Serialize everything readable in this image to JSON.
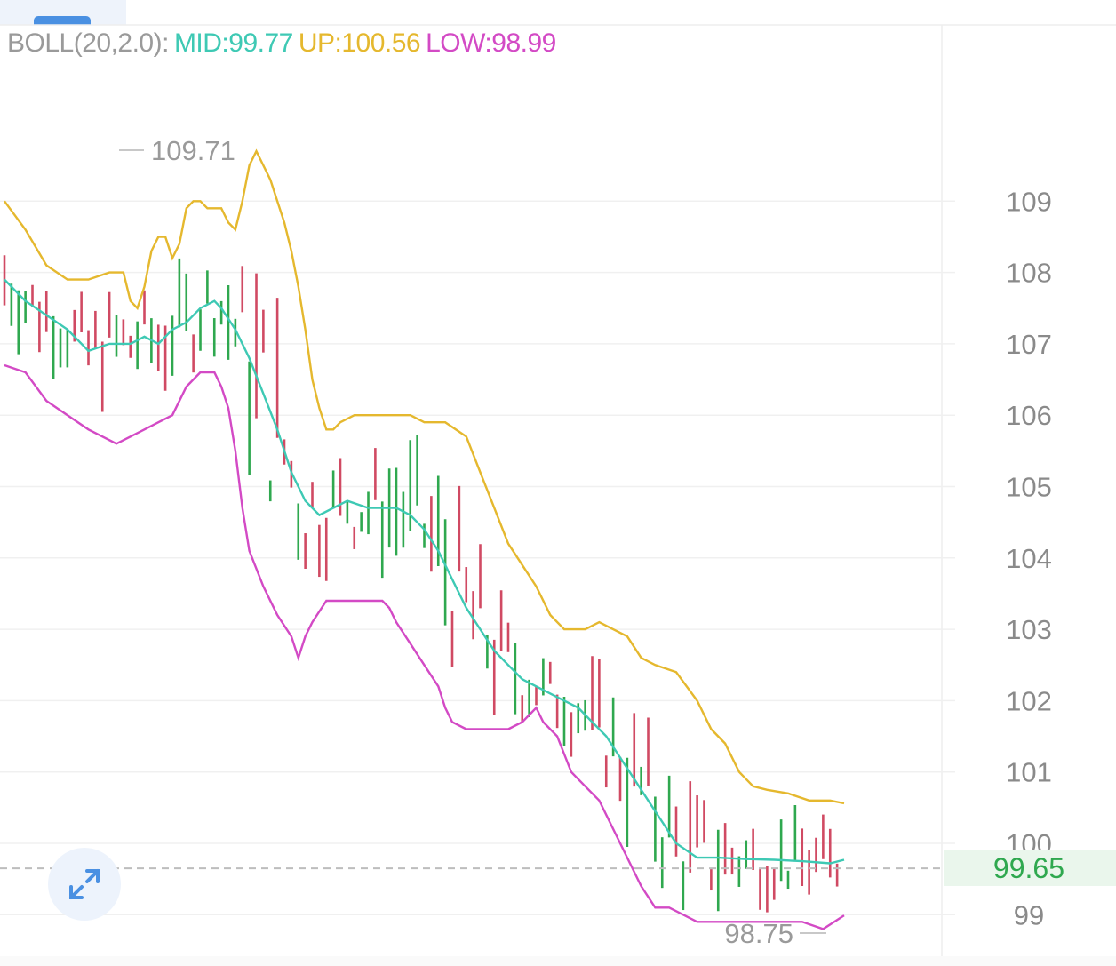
{
  "indicator": {
    "name": "BOLL(20,2.0):",
    "mid": "MID:99.77",
    "up": "UP:100.56",
    "low": "LOW:98.99"
  },
  "colors": {
    "mid": "#3ec9b4",
    "up": "#e5b82e",
    "low": "#d34ac5",
    "rise": "#2fa84f",
    "fall": "#d04a63",
    "grid": "#f0f0f0",
    "axis_text": "#8a8a8a"
  },
  "current_price": "99.65",
  "chart_data": {
    "type": "candlestick-bollinger",
    "y_ticks": [
      109,
      108,
      107,
      106,
      105,
      104,
      103,
      102,
      101,
      100,
      99
    ],
    "ylim": [
      98.5,
      111
    ],
    "max_label": "109.71",
    "min_label": "98.75",
    "current_price": 99.65,
    "series": {
      "upper": [
        [
          0,
          109.0
        ],
        [
          3,
          108.6
        ],
        [
          6,
          108.1
        ],
        [
          9,
          107.9
        ],
        [
          12,
          107.9
        ],
        [
          15,
          108.0
        ],
        [
          17,
          108.0
        ],
        [
          18,
          107.6
        ],
        [
          19,
          107.5
        ],
        [
          20,
          107.8
        ],
        [
          21,
          108.3
        ],
        [
          22,
          108.5
        ],
        [
          23,
          108.5
        ],
        [
          24,
          108.2
        ],
        [
          25,
          108.4
        ],
        [
          26,
          108.9
        ],
        [
          27,
          109.0
        ],
        [
          28,
          109.0
        ],
        [
          29,
          108.9
        ],
        [
          30,
          108.9
        ],
        [
          31,
          108.9
        ],
        [
          32,
          108.7
        ],
        [
          33,
          108.6
        ],
        [
          34,
          109.0
        ],
        [
          35,
          109.5
        ],
        [
          36,
          109.7
        ],
        [
          37,
          109.5
        ],
        [
          38,
          109.3
        ],
        [
          39,
          109.0
        ],
        [
          40,
          108.7
        ],
        [
          41,
          108.3
        ],
        [
          42,
          107.8
        ],
        [
          43,
          107.2
        ],
        [
          44,
          106.5
        ],
        [
          45,
          106.1
        ],
        [
          46,
          105.8
        ],
        [
          47,
          105.8
        ],
        [
          48,
          105.9
        ],
        [
          50,
          106.0
        ],
        [
          55,
          106.0
        ],
        [
          58,
          106.0
        ],
        [
          60,
          105.9
        ],
        [
          63,
          105.9
        ],
        [
          66,
          105.7
        ],
        [
          68,
          105.2
        ],
        [
          70,
          104.7
        ],
        [
          72,
          104.2
        ],
        [
          74,
          103.9
        ],
        [
          76,
          103.6
        ],
        [
          78,
          103.2
        ],
        [
          80,
          103.0
        ],
        [
          83,
          103.0
        ],
        [
          85,
          103.1
        ],
        [
          87,
          103.0
        ],
        [
          89,
          102.9
        ],
        [
          91,
          102.6
        ],
        [
          93,
          102.5
        ],
        [
          96,
          102.4
        ],
        [
          99,
          102.0
        ],
        [
          101,
          101.6
        ],
        [
          103,
          101.4
        ],
        [
          105,
          101.0
        ],
        [
          107,
          100.8
        ],
        [
          109,
          100.75
        ],
        [
          112,
          100.7
        ],
        [
          115,
          100.6
        ],
        [
          118,
          100.6
        ],
        [
          120,
          100.56
        ]
      ],
      "mid": [
        [
          0,
          107.9
        ],
        [
          3,
          107.6
        ],
        [
          6,
          107.4
        ],
        [
          9,
          107.2
        ],
        [
          12,
          106.9
        ],
        [
          15,
          107.0
        ],
        [
          18,
          107.0
        ],
        [
          20,
          107.1
        ],
        [
          22,
          107.0
        ],
        [
          24,
          107.2
        ],
        [
          26,
          107.3
        ],
        [
          28,
          107.5
        ],
        [
          30,
          107.6
        ],
        [
          31,
          107.5
        ],
        [
          33,
          107.2
        ],
        [
          35,
          106.8
        ],
        [
          37,
          106.3
        ],
        [
          39,
          105.8
        ],
        [
          41,
          105.2
        ],
        [
          43,
          104.8
        ],
        [
          45,
          104.6
        ],
        [
          47,
          104.7
        ],
        [
          49,
          104.8
        ],
        [
          52,
          104.7
        ],
        [
          54,
          104.7
        ],
        [
          56,
          104.7
        ],
        [
          58,
          104.6
        ],
        [
          60,
          104.4
        ],
        [
          62,
          104.1
        ],
        [
          64,
          103.7
        ],
        [
          66,
          103.3
        ],
        [
          68,
          103.0
        ],
        [
          70,
          102.7
        ],
        [
          72,
          102.5
        ],
        [
          74,
          102.3
        ],
        [
          76,
          102.2
        ],
        [
          78,
          102.1
        ],
        [
          80,
          102.0
        ],
        [
          82,
          101.9
        ],
        [
          84,
          101.7
        ],
        [
          86,
          101.5
        ],
        [
          88,
          101.2
        ],
        [
          90,
          100.9
        ],
        [
          92,
          100.6
        ],
        [
          94,
          100.3
        ],
        [
          96,
          100.0
        ],
        [
          99,
          99.8
        ],
        [
          102,
          99.8
        ],
        [
          106,
          99.78
        ],
        [
          110,
          99.77
        ],
        [
          114,
          99.75
        ],
        [
          118,
          99.72
        ],
        [
          120,
          99.77
        ]
      ],
      "lower": [
        [
          0,
          106.7
        ],
        [
          3,
          106.6
        ],
        [
          6,
          106.2
        ],
        [
          9,
          106.0
        ],
        [
          12,
          105.8
        ],
        [
          14,
          105.7
        ],
        [
          16,
          105.6
        ],
        [
          18,
          105.7
        ],
        [
          20,
          105.8
        ],
        [
          22,
          105.9
        ],
        [
          24,
          106.0
        ],
        [
          26,
          106.4
        ],
        [
          28,
          106.6
        ],
        [
          30,
          106.6
        ],
        [
          31,
          106.4
        ],
        [
          32,
          106.1
        ],
        [
          33,
          105.5
        ],
        [
          34,
          104.7
        ],
        [
          35,
          104.1
        ],
        [
          37,
          103.6
        ],
        [
          39,
          103.2
        ],
        [
          41,
          102.9
        ],
        [
          42,
          102.6
        ],
        [
          43,
          102.9
        ],
        [
          44,
          103.1
        ],
        [
          46,
          103.4
        ],
        [
          48,
          103.4
        ],
        [
          50,
          103.4
        ],
        [
          52,
          103.4
        ],
        [
          54,
          103.4
        ],
        [
          55,
          103.3
        ],
        [
          56,
          103.1
        ],
        [
          58,
          102.8
        ],
        [
          60,
          102.5
        ],
        [
          62,
          102.2
        ],
        [
          63,
          101.9
        ],
        [
          64,
          101.7
        ],
        [
          66,
          101.6
        ],
        [
          68,
          101.6
        ],
        [
          70,
          101.6
        ],
        [
          72,
          101.6
        ],
        [
          74,
          101.7
        ],
        [
          76,
          101.9
        ],
        [
          77,
          101.7
        ],
        [
          79,
          101.5
        ],
        [
          81,
          101.0
        ],
        [
          83,
          100.8
        ],
        [
          85,
          100.6
        ],
        [
          87,
          100.2
        ],
        [
          89,
          99.8
        ],
        [
          91,
          99.4
        ],
        [
          93,
          99.1
        ],
        [
          95,
          99.1
        ],
        [
          97,
          99.0
        ],
        [
          99,
          98.9
        ],
        [
          102,
          98.9
        ],
        [
          106,
          98.9
        ],
        [
          110,
          98.9
        ],
        [
          114,
          98.9
        ],
        [
          117,
          98.8
        ],
        [
          120,
          98.99
        ]
      ]
    }
  }
}
